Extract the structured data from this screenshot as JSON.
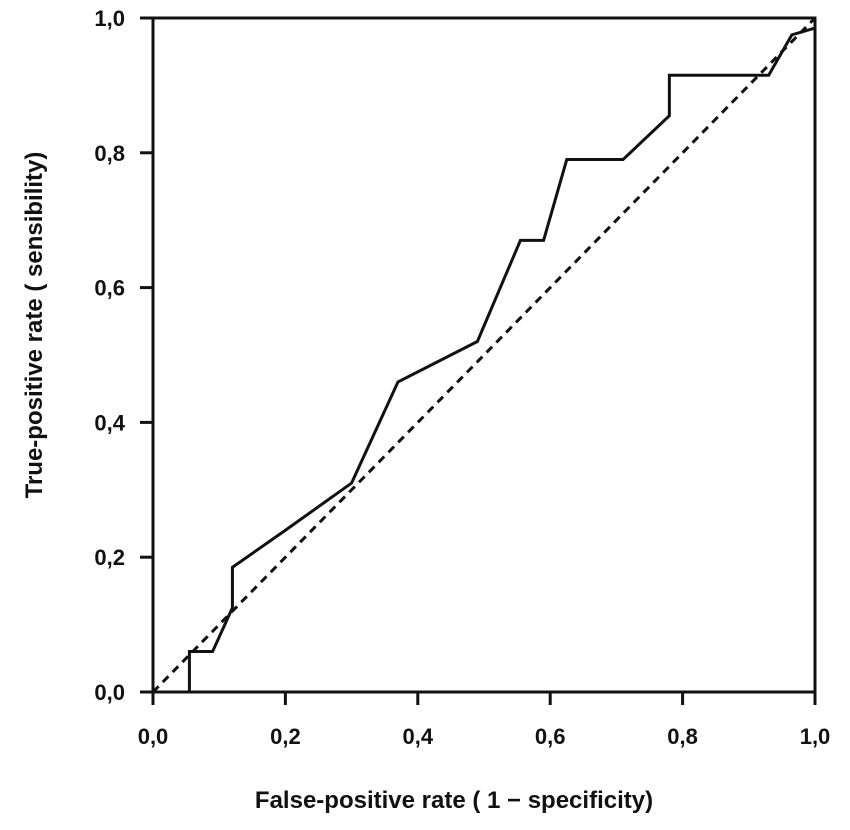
{
  "chart_data": {
    "type": "line",
    "title": "",
    "xlabel": "False-positive rate ( 1 − specificity)",
    "ylabel": "True-positive rate ( sensibility)",
    "xlim": [
      0,
      1
    ],
    "ylim": [
      0,
      1
    ],
    "xticks": [
      "0,0",
      "0,2",
      "0,4",
      "0,6",
      "0,8",
      "1,0"
    ],
    "yticks": [
      "0,0",
      "0,2",
      "0,4",
      "0,6",
      "0,8",
      "1,0"
    ],
    "grid": false,
    "legend": "none",
    "series": [
      {
        "style": "solid",
        "color": "#111111",
        "x": [
          0.055,
          0.055,
          0.09,
          0.12,
          0.12,
          0.2,
          0.3,
          0.37,
          0.49,
          0.555,
          0.59,
          0.625,
          0.71,
          0.78,
          0.78,
          0.93,
          0.965,
          1.0
        ],
        "y": [
          0.0,
          0.06,
          0.06,
          0.125,
          0.185,
          0.24,
          0.31,
          0.46,
          0.52,
          0.67,
          0.67,
          0.79,
          0.79,
          0.855,
          0.915,
          0.915,
          0.975,
          0.985
        ]
      },
      {
        "style": "dashed",
        "color": "#111111",
        "x": [
          0,
          1
        ],
        "y": [
          0,
          1
        ]
      }
    ]
  }
}
